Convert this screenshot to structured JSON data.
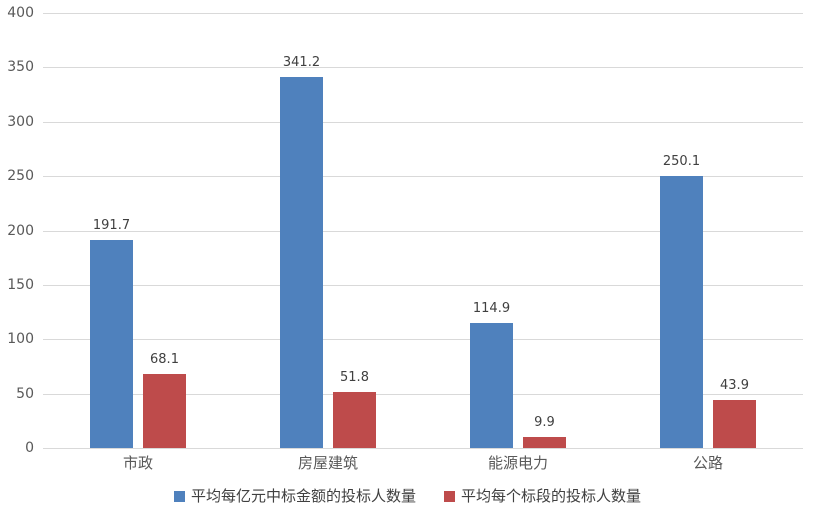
{
  "colors": {
    "series1": "#4F81BD",
    "series2": "#BE4B4B",
    "gridline": "#D9D9D9",
    "axis_text": "#595959",
    "label_text": "#404040",
    "background": "#FFFFFF"
  },
  "chart_data": {
    "type": "bar",
    "title": "",
    "xlabel": "",
    "ylabel": "",
    "categories": [
      "市政",
      "房屋建筑",
      "能源电力",
      "公路"
    ],
    "series": [
      {
        "name": "平均每亿元中标金额的投标人数量",
        "color": "#4F81BD",
        "values": [
          191.7,
          341.2,
          114.9,
          250.1
        ]
      },
      {
        "name": "平均每个标段的投标人数量",
        "color": "#BE4B4B",
        "values": [
          68.1,
          51.8,
          9.9,
          43.9
        ]
      }
    ],
    "data_labels": [
      "191.7",
      "341.2",
      "114.9",
      "250.1",
      "68.1",
      "51.8",
      "9.9",
      "43.9"
    ],
    "ylim": [
      0,
      400
    ],
    "yticks": [
      0,
      50,
      100,
      150,
      200,
      250,
      300,
      350,
      400
    ],
    "grid": true,
    "legend_position": "bottom"
  }
}
